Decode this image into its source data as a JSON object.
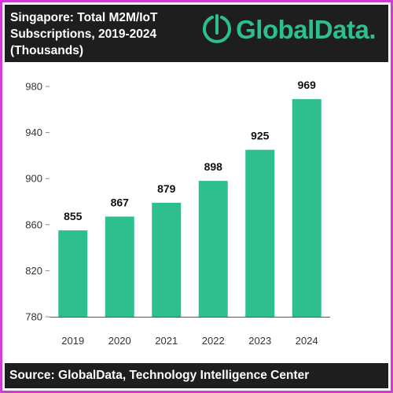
{
  "header": {
    "title_lines": [
      "Singapore: Total M2M/IoT",
      "Subscriptions, 2019-2024",
      "(Thousands)"
    ],
    "logo_text": "GlobalData."
  },
  "footer": {
    "source": "Source: GlobalData, Technology Intelligence Center"
  },
  "colors": {
    "bar": "#2ebf91",
    "header_bg": "#1e1e1e",
    "border": "#d23bd6",
    "logo": "#2ebf91"
  },
  "chart_data": {
    "type": "bar",
    "title": "Singapore: Total M2M/IoT Subscriptions, 2019-2024 (Thousands)",
    "categories": [
      "2019",
      "2020",
      "2021",
      "2022",
      "2023",
      "2024"
    ],
    "values": [
      855,
      867,
      879,
      898,
      925,
      969
    ],
    "data_labels": [
      "855",
      "867",
      "879",
      "898",
      "925",
      "969"
    ],
    "ylim": [
      780,
      980
    ],
    "yticks": [
      780,
      820,
      860,
      900,
      940,
      980
    ],
    "xlabel": "",
    "ylabel": "",
    "grid": false,
    "legend": "none"
  }
}
